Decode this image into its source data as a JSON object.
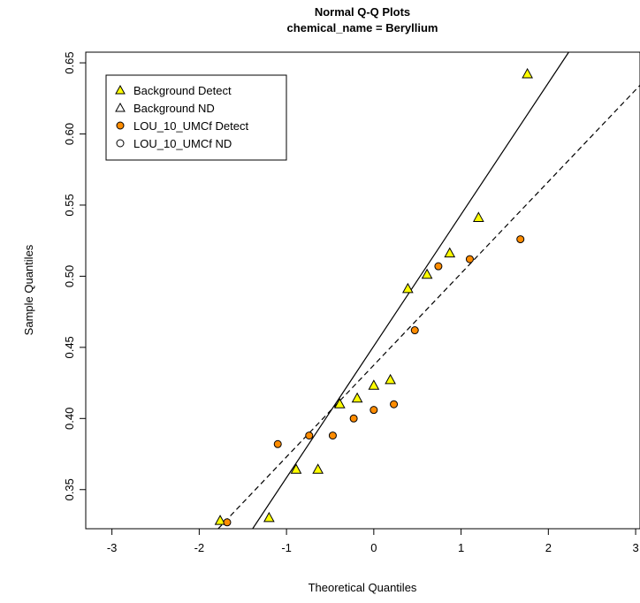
{
  "chart_data": {
    "type": "scatter",
    "title": "Normal Q-Q Plots",
    "subtitle": "chemical_name = Beryllium",
    "xlabel": "Theoretical Quantiles",
    "ylabel": "Sample Quantiles",
    "xlim": [
      -3.3,
      3.05
    ],
    "ylim": [
      0.3225,
      0.6575
    ],
    "xticks": [
      -3,
      -2,
      -1,
      0,
      1,
      2,
      3
    ],
    "xtick_labels": [
      "-3",
      "-2",
      "-1",
      "0",
      "1",
      "2",
      "3"
    ],
    "yticks": [
      0.35,
      0.4,
      0.45,
      0.5,
      0.55,
      0.6,
      0.65
    ],
    "ytick_labels": [
      "0.35",
      "0.40",
      "0.45",
      "0.50",
      "0.55",
      "0.60",
      "0.65"
    ],
    "grid": false,
    "legend_position": "top-left",
    "series": [
      {
        "name": "Background Detect",
        "marker": "triangle",
        "fill": "#ffff00",
        "x": [
          -1.76,
          -1.2,
          -0.89,
          -0.64,
          -0.39,
          -0.19,
          0.0,
          0.19,
          0.39,
          0.61,
          0.87,
          1.2,
          1.76
        ],
        "y": [
          0.328,
          0.33,
          0.364,
          0.364,
          0.41,
          0.414,
          0.423,
          0.427,
          0.491,
          0.501,
          0.516,
          0.541,
          0.642
        ]
      },
      {
        "name": "Background ND",
        "marker": "triangle",
        "fill": "none",
        "x": [],
        "y": []
      },
      {
        "name": "LOU_10_UMCf Detect",
        "marker": "circle",
        "fill": "#ff8c00",
        "x": [
          -1.68,
          -1.1,
          -0.74,
          -0.47,
          -0.23,
          0.0,
          0.23,
          0.47,
          0.74,
          1.1,
          1.68
        ],
        "y": [
          0.327,
          0.382,
          0.388,
          0.388,
          0.4,
          0.406,
          0.41,
          0.462,
          0.507,
          0.512,
          0.526
        ]
      },
      {
        "name": "LOU_10_UMCf ND",
        "marker": "circle",
        "fill": "none",
        "x": [],
        "y": []
      }
    ],
    "reference_lines": [
      {
        "series": "Background",
        "style": "solid",
        "intercept": 0.4509,
        "slope": 0.0925
      },
      {
        "series": "LOU_10_UMCf",
        "style": "dashed",
        "intercept": 0.4375,
        "slope": 0.0645
      }
    ]
  }
}
